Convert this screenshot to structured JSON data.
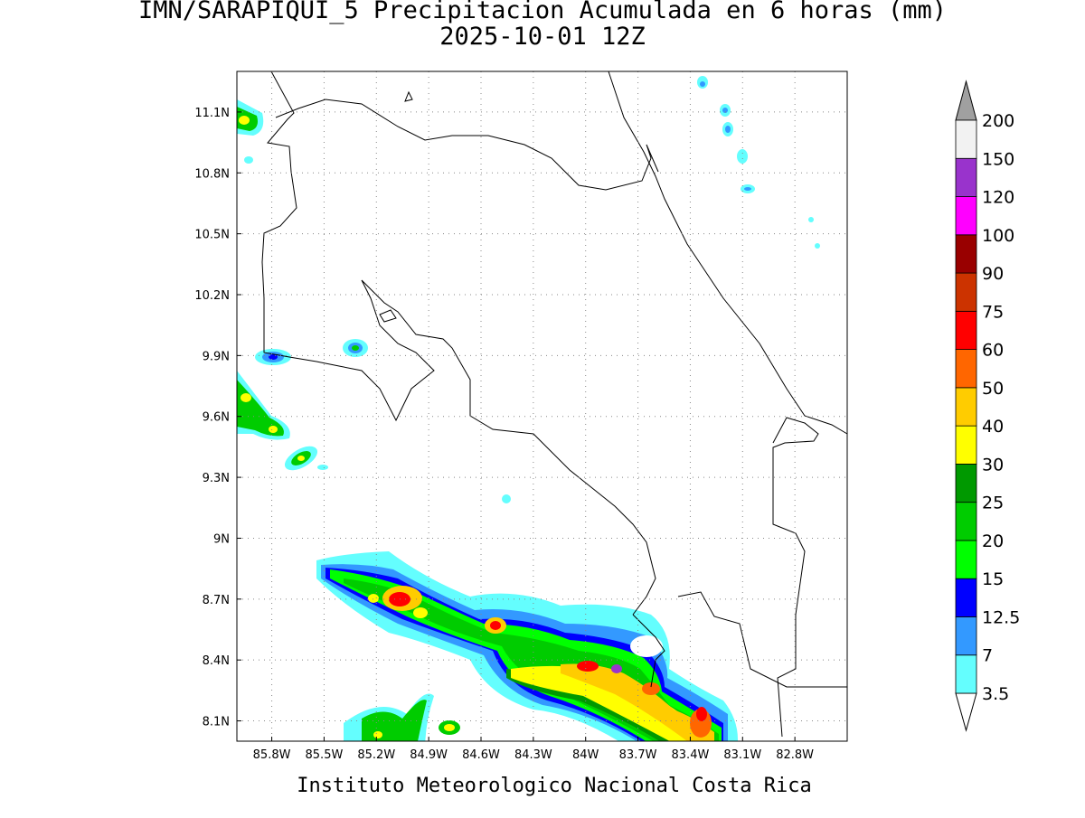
{
  "title": "IMN/SARAPIQUI_5 Precipitacion Acumulada en 6 horas (mm)",
  "subtitle": "2025-10-01 12Z",
  "footer": "Instituto Meteorologico Nacional Costa Rica",
  "map": {
    "lonlim": [
      -86.0,
      -82.5
    ],
    "latlim": [
      8.0,
      11.3
    ],
    "grid": true,
    "lon_ticks": [
      {
        "value": -85.8,
        "label": "85.8W"
      },
      {
        "value": -85.5,
        "label": "85.5W"
      },
      {
        "value": -85.2,
        "label": "85.2W"
      },
      {
        "value": -84.9,
        "label": "84.9W"
      },
      {
        "value": -84.6,
        "label": "84.6W"
      },
      {
        "value": -84.3,
        "label": "84.3W"
      },
      {
        "value": -84.0,
        "label": "84W"
      },
      {
        "value": -83.7,
        "label": "83.7W"
      },
      {
        "value": -83.4,
        "label": "83.4W"
      },
      {
        "value": -83.1,
        "label": "83.1W"
      },
      {
        "value": -82.8,
        "label": "82.8W"
      }
    ],
    "lat_ticks": [
      {
        "value": 11.1,
        "label": "11.1N"
      },
      {
        "value": 10.8,
        "label": "10.8N"
      },
      {
        "value": 10.5,
        "label": "10.5N"
      },
      {
        "value": 10.2,
        "label": "10.2N"
      },
      {
        "value": 9.9,
        "label": "9.9N"
      },
      {
        "value": 9.6,
        "label": "9.6N"
      },
      {
        "value": 9.3,
        "label": "9.3N"
      },
      {
        "value": 9.0,
        "label": "9N"
      },
      {
        "value": 8.7,
        "label": "8.7N"
      },
      {
        "value": 8.4,
        "label": "8.4N"
      },
      {
        "value": 8.1,
        "label": "8.1N"
      }
    ]
  },
  "colorbar": {
    "levels": [
      3.5,
      7,
      12.5,
      15,
      20,
      25,
      30,
      40,
      50,
      60,
      75,
      90,
      100,
      120,
      150,
      200
    ],
    "colors": [
      "#64fefe",
      "#3399ff",
      "#0000ff",
      "#00ff00",
      "#00cc00",
      "#009900",
      "#ffff00",
      "#ffcc00",
      "#ff6600",
      "#ff0000",
      "#cc3300",
      "#990000",
      "#ff00ff",
      "#9933cc",
      "#f2f2f2"
    ],
    "under_color": "#ffffff",
    "over_color": "#a0a0a0"
  }
}
